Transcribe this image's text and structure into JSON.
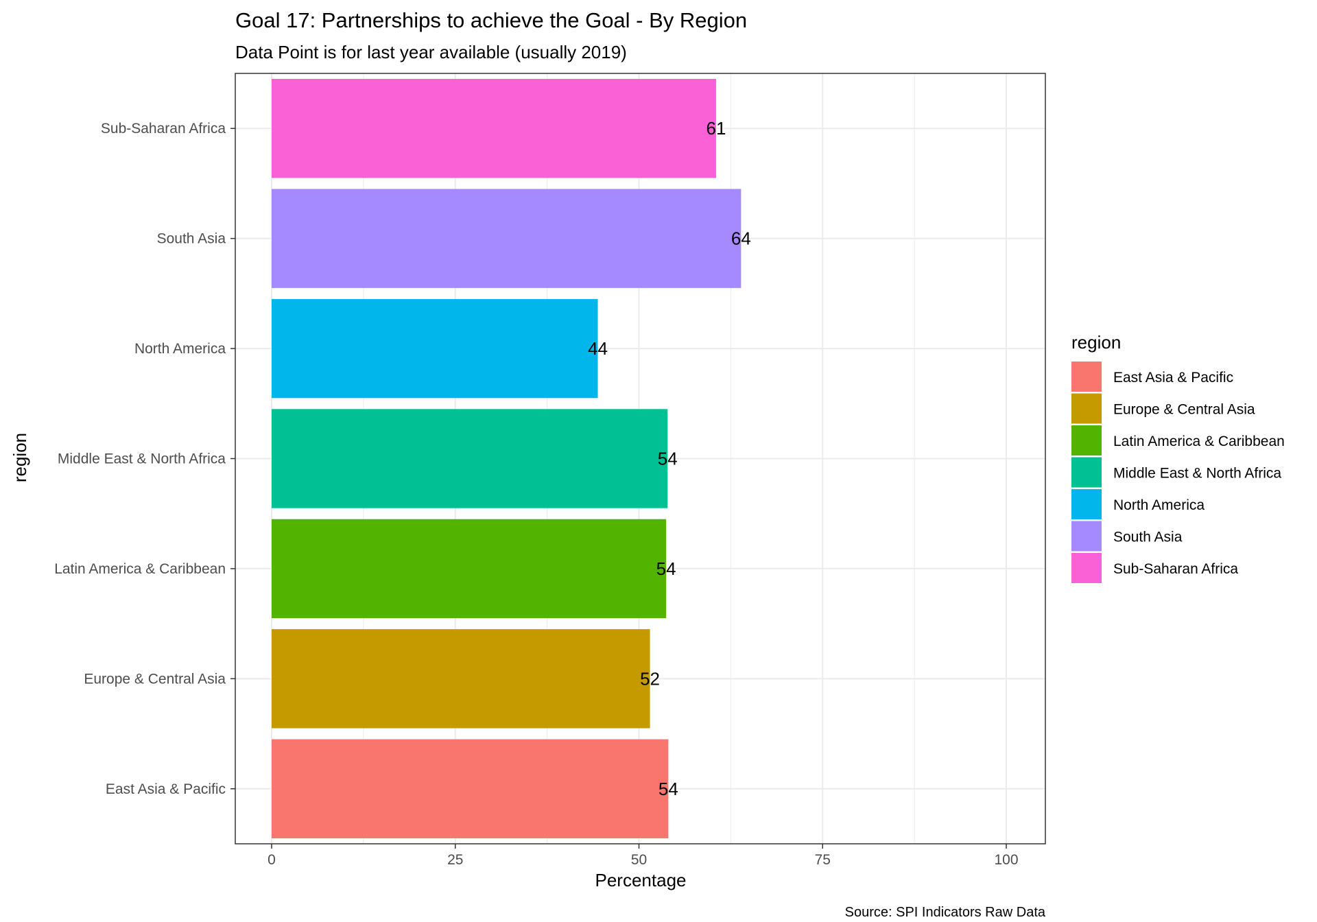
{
  "chart_data": {
    "type": "bar",
    "orientation": "horizontal",
    "title": "Goal 17: Partnerships to achieve the Goal - By Region",
    "subtitle": "Data Point is for last year available (usually 2019)",
    "xlabel": "Percentage",
    "ylabel": "region",
    "xlim": [
      0,
      100
    ],
    "x_ticks": [
      "0",
      "25",
      "50",
      "75",
      "100"
    ],
    "x_tick_values": [
      0,
      25,
      50,
      75,
      100
    ],
    "grid": true,
    "categories": [
      "East Asia & Pacific",
      "Europe & Central Asia",
      "Latin America & Caribbean",
      "Middle East & North Africa",
      "North America",
      "South Asia",
      "Sub-Saharan Africa"
    ],
    "values": [
      54,
      51.5,
      53.7,
      53.9,
      44.4,
      63.9,
      60.5
    ],
    "data_labels": [
      "54",
      "52",
      "54",
      "54",
      "44",
      "64",
      "61"
    ],
    "colors": [
      "#F8766D",
      "#C49A00",
      "#53B400",
      "#00C094",
      "#00B6EB",
      "#A58AFF",
      "#FB61D7"
    ],
    "legend": {
      "title": "region",
      "position": "right",
      "entries": [
        "East Asia & Pacific",
        "Europe & Central Asia",
        "Latin America & Caribbean",
        "Middle East & North Africa",
        "North America",
        "South Asia",
        "Sub-Saharan Africa"
      ]
    },
    "caption": "Source: SPI Indicators Raw Data"
  }
}
